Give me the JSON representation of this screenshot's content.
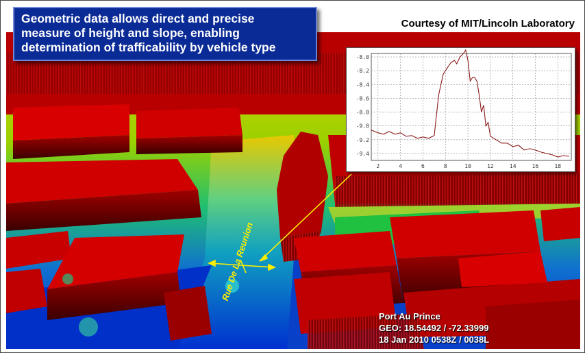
{
  "headline": {
    "lines": [
      "Geometric data allows direct and precise",
      "measure of height and slope, enabling",
      "determination of trafficability by vehicle type"
    ]
  },
  "credit": "Courtesy of MIT/Lincoln Laboratory",
  "street_label": "Rue De La Reunion",
  "location": {
    "place": "Port Au Prince",
    "geo": "GEO: 18.54492 / -72.33999",
    "datetime": "18 Jan 2010  0538Z / 0038L"
  },
  "colors": {
    "headline_bg": "#0a2a96",
    "buildings": "#d00000",
    "ground_high": "#e8d000",
    "ground_mid": "#20c040",
    "ground_low": "#0030c8",
    "profile_line": "#8b1a1a",
    "annotation": "#ffee00"
  },
  "chart_data": {
    "type": "line",
    "x": [
      1.4,
      2.0,
      2.5,
      3.0,
      3.5,
      4.0,
      4.5,
      5.0,
      5.5,
      6.0,
      6.5,
      7.0,
      7.2,
      7.4,
      7.6,
      7.8,
      8.0,
      8.2,
      8.5,
      8.8,
      9.0,
      9.3,
      9.6,
      9.8,
      10.0,
      10.2,
      10.4,
      10.6,
      10.8,
      11.0,
      11.2,
      11.4,
      11.6,
      11.8,
      12.0,
      12.5,
      13.0,
      13.5,
      14.0,
      14.5,
      15.0,
      15.5,
      16.0,
      16.5,
      17.0,
      17.5,
      18.0,
      18.5,
      19.0
    ],
    "y": [
      -9.06,
      -9.1,
      -9.12,
      -9.08,
      -9.12,
      -9.1,
      -9.15,
      -9.14,
      -9.18,
      -9.16,
      -9.18,
      -9.14,
      -8.85,
      -8.55,
      -8.4,
      -8.25,
      -8.2,
      -8.15,
      -8.08,
      -8.05,
      -8.1,
      -8.0,
      -7.95,
      -7.9,
      -8.05,
      -8.35,
      -8.3,
      -8.3,
      -8.35,
      -8.55,
      -8.8,
      -8.7,
      -9.0,
      -8.95,
      -9.15,
      -9.2,
      -9.25,
      -9.25,
      -9.3,
      -9.28,
      -9.35,
      -9.33,
      -9.35,
      -9.38,
      -9.4,
      -9.42,
      -9.45,
      -9.43,
      -9.44
    ],
    "xlim": [
      1.4,
      19.2
    ],
    "ylim": [
      -9.5,
      -7.95
    ],
    "x_ticks": [
      "2",
      "4",
      "6",
      "8",
      "10",
      "12",
      "14",
      "16",
      "18"
    ],
    "y_ticks": [
      "-8.0",
      "-8.2",
      "-8.4",
      "-8.6",
      "-8.8",
      "-9.0",
      "-9.2",
      "-9.4"
    ],
    "grid": true,
    "title": "",
    "xlabel": "",
    "ylabel": ""
  }
}
